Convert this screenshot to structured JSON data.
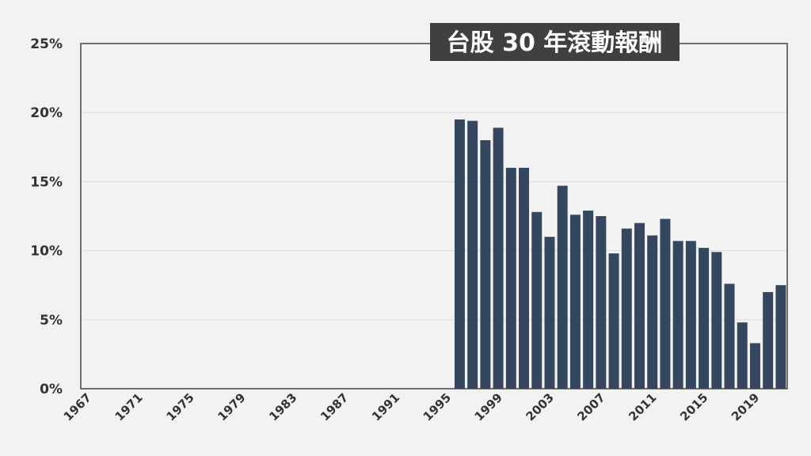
{
  "chart_data": {
    "type": "bar",
    "title": "台股 30 年滾動報酬",
    "xlabel": "",
    "ylabel": "",
    "x_range": [
      1967,
      2021
    ],
    "x_tick_labels": [
      "1967",
      "1971",
      "1975",
      "1979",
      "1983",
      "1987",
      "1991",
      "1995",
      "1999",
      "2003",
      "2007",
      "2011",
      "2015",
      "2019"
    ],
    "y_tick_labels": [
      "0%",
      "5%",
      "10%",
      "15%",
      "20%",
      "25%"
    ],
    "ylim": [
      0,
      25
    ],
    "y_unit": "%",
    "grid": true,
    "legend": "none",
    "bar_color": "#34475e",
    "years": [
      1996,
      1997,
      1998,
      1999,
      2000,
      2001,
      2002,
      2003,
      2004,
      2005,
      2006,
      2007,
      2008,
      2009,
      2010,
      2011,
      2012,
      2013,
      2014,
      2015,
      2016,
      2017,
      2018,
      2019,
      2020,
      2021
    ],
    "values": [
      19.5,
      19.4,
      18.0,
      18.9,
      16.0,
      16.0,
      12.8,
      11.0,
      14.7,
      12.6,
      12.9,
      12.5,
      9.8,
      11.6,
      12.0,
      11.1,
      12.3,
      10.7,
      10.7,
      10.2,
      9.9,
      7.6,
      4.8,
      3.3,
      7.0,
      7.5
    ]
  }
}
